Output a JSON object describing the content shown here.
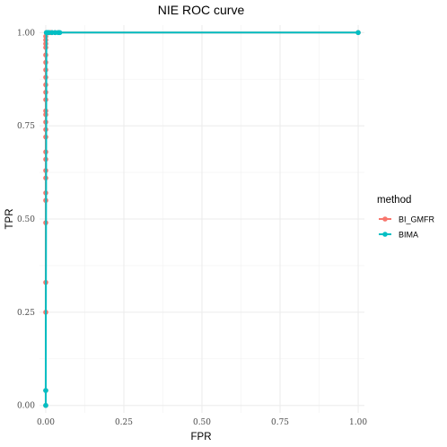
{
  "chart_data": {
    "type": "line",
    "title": "NIE ROC curve",
    "xlabel": "FPR",
    "ylabel": "TPR",
    "xlim": [
      -0.02,
      1.02
    ],
    "ylim": [
      -0.02,
      1.02
    ],
    "x_ticks": [
      "0.00",
      "0.25",
      "0.50",
      "0.75",
      "1.00"
    ],
    "y_ticks": [
      "0.00",
      "0.25",
      "0.50",
      "0.75",
      "1.00"
    ],
    "grid": true,
    "legend": {
      "title": "method",
      "position": "right"
    },
    "series": [
      {
        "name": "BI_GMFR",
        "color": "#f8766d",
        "points": [
          [
            0,
            0
          ],
          [
            0,
            0.04
          ],
          [
            0,
            0.25
          ],
          [
            0,
            0.33
          ],
          [
            0,
            0.49
          ],
          [
            0,
            0.55
          ],
          [
            0,
            0.57
          ],
          [
            0,
            0.61
          ],
          [
            0,
            0.63
          ],
          [
            0,
            0.66
          ],
          [
            0,
            0.68
          ],
          [
            0,
            0.72
          ],
          [
            0,
            0.74
          ],
          [
            0,
            0.76
          ],
          [
            0,
            0.78
          ],
          [
            0,
            0.79
          ],
          [
            0,
            0.82
          ],
          [
            0,
            0.84
          ],
          [
            0,
            0.86
          ],
          [
            0,
            0.88
          ],
          [
            0,
            0.9
          ],
          [
            0,
            0.92
          ],
          [
            0,
            0.94
          ],
          [
            0,
            0.96
          ],
          [
            0,
            0.97
          ],
          [
            0,
            0.98
          ],
          [
            0,
            0.99
          ],
          [
            0.002,
            1.0
          ],
          [
            0.005,
            1.0
          ],
          [
            0.01,
            1.0
          ],
          [
            0.015,
            1.0
          ],
          [
            0.02,
            1.0
          ],
          [
            0.03,
            1.0
          ],
          [
            0.04,
            1.0
          ],
          [
            1.0,
            1.0
          ]
        ]
      },
      {
        "name": "BIMA",
        "color": "#00bfc4",
        "points": [
          [
            0,
            0
          ],
          [
            0,
            0.04
          ],
          [
            0.002,
            1.0
          ],
          [
            0.005,
            1.0
          ],
          [
            0.01,
            1.0
          ],
          [
            0.02,
            1.0
          ],
          [
            0.03,
            1.0
          ],
          [
            0.04,
            1.0
          ],
          [
            0.045,
            1.0
          ],
          [
            1.0,
            1.0
          ]
        ]
      }
    ]
  }
}
